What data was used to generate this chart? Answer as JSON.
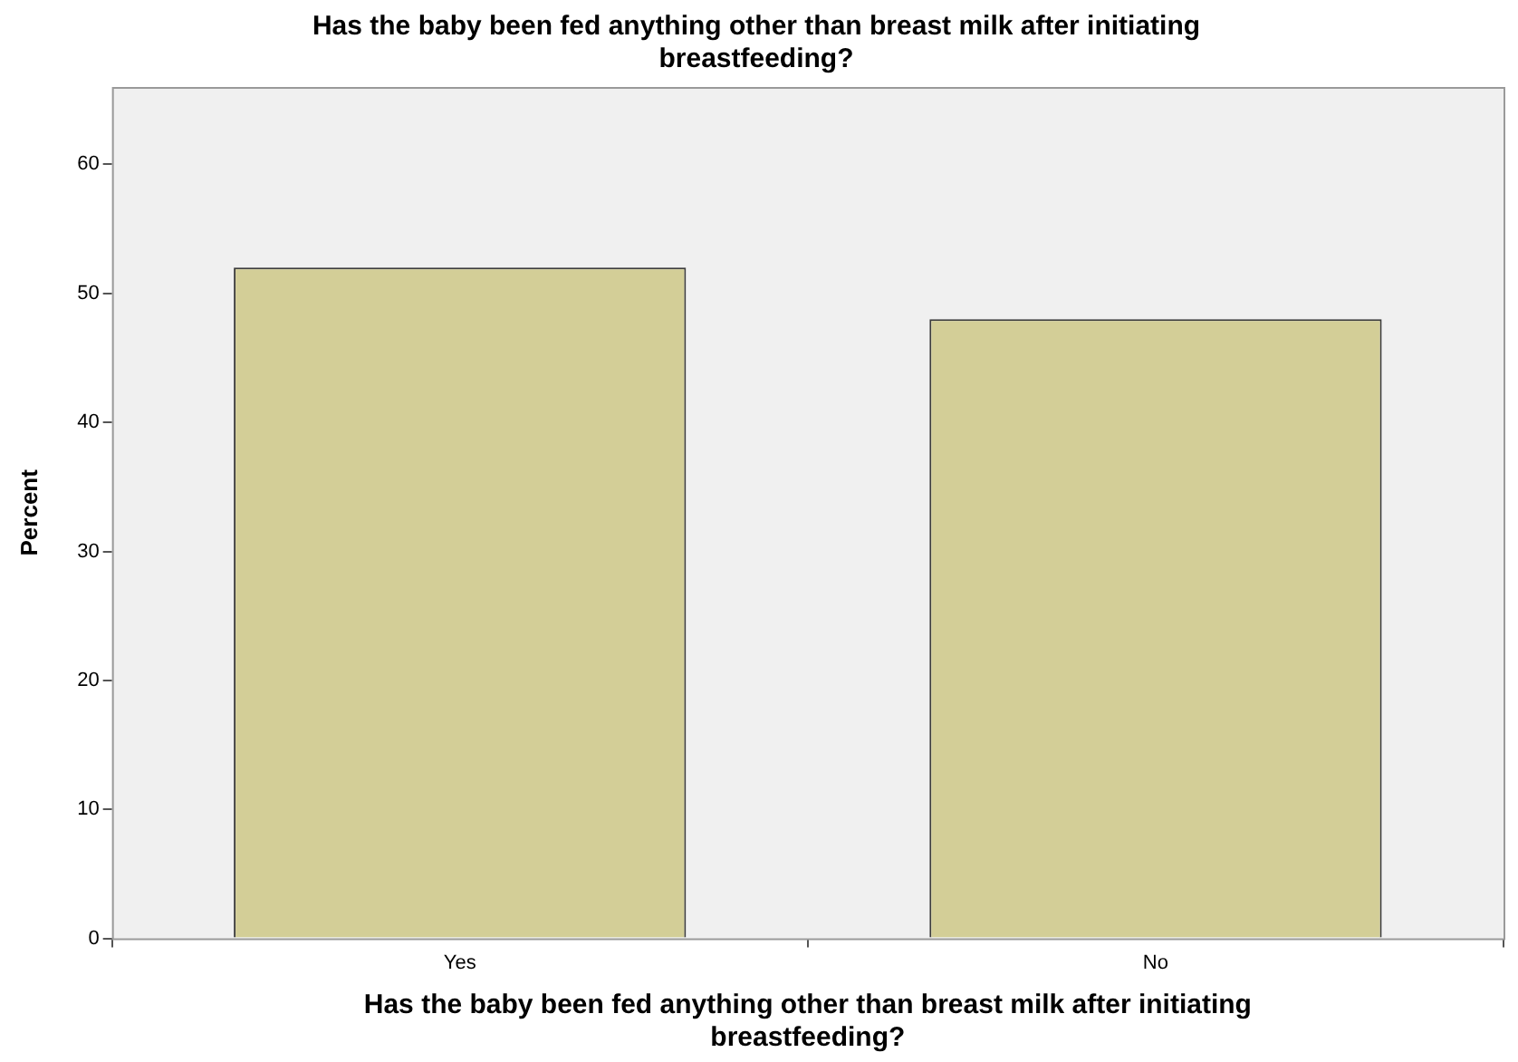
{
  "chart_data": {
    "type": "bar",
    "title": "Has the baby been fed anything other than breast milk after initiating breastfeeding?",
    "xlabel": "Has the baby been fed anything other than breast milk after initiating breastfeeding?",
    "ylabel": "Percent",
    "categories": [
      "Yes",
      "No"
    ],
    "values": [
      52,
      48
    ],
    "color": "#d3ce97",
    "ylim": [
      0,
      66
    ],
    "yticks": [
      0,
      10,
      20,
      30,
      40,
      50,
      60
    ],
    "grid": false,
    "legend": false
  }
}
